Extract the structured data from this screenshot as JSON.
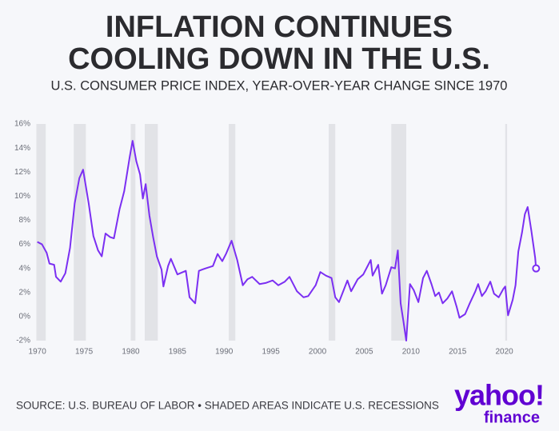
{
  "chart_data": {
    "type": "line",
    "title": [
      "INFLATION CONTINUES",
      "COOLING DOWN IN THE U.S."
    ],
    "subtitle": "U.S. CONSUMER PRICE INDEX, YEAR-OVER-YEAR CHANGE SINCE 1970",
    "source": "SOURCE: U.S. BUREAU OF LABOR • SHADED AREAS INDICATE U.S. RECESSIONS",
    "logo": [
      "yahoo!",
      "finance"
    ],
    "color": "#7b2ff2",
    "recession_color": "#e2e3e7",
    "recessions": [
      [
        1969.9,
        1970.9
      ],
      [
        1973.9,
        1975.2
      ],
      [
        1980.0,
        1980.5
      ],
      [
        1981.5,
        1982.9
      ],
      [
        1990.5,
        1991.2
      ],
      [
        2001.2,
        2001.9
      ],
      [
        2007.9,
        2009.5
      ],
      [
        2020.1,
        2020.3
      ]
    ],
    "x": [
      1970.0,
      1970.5,
      1971.0,
      1971.3,
      1971.8,
      1972.0,
      1972.5,
      1973.0,
      1973.5,
      1974.0,
      1974.5,
      1974.9,
      1975.5,
      1976.0,
      1976.5,
      1976.9,
      1977.3,
      1977.8,
      1978.2,
      1978.8,
      1979.3,
      1979.9,
      1980.2,
      1980.6,
      1981.0,
      1981.3,
      1981.6,
      1982.0,
      1982.4,
      1982.8,
      1983.3,
      1983.5,
      1984.0,
      1984.3,
      1985.0,
      1985.9,
      1986.3,
      1986.9,
      1987.3,
      1988.0,
      1988.8,
      1989.3,
      1989.8,
      1990.2,
      1990.8,
      1991.4,
      1992.0,
      1992.5,
      1993.0,
      1993.8,
      1994.5,
      1995.2,
      1995.8,
      1996.5,
      1997.0,
      1997.8,
      1998.5,
      1999.0,
      1999.8,
      2000.3,
      2000.9,
      2001.5,
      2001.9,
      2002.3,
      2002.9,
      2003.2,
      2003.6,
      2004.3,
      2004.9,
      2005.7,
      2005.9,
      2006.5,
      2006.9,
      2007.3,
      2007.9,
      2008.3,
      2008.6,
      2008.9,
      2009.2,
      2009.5,
      2009.9,
      2010.3,
      2010.8,
      2011.3,
      2011.7,
      2012.2,
      2012.6,
      2013.0,
      2013.4,
      2013.9,
      2014.4,
      2014.9,
      2015.2,
      2015.8,
      2016.3,
      2016.9,
      2017.2,
      2017.6,
      2018.0,
      2018.5,
      2018.9,
      2019.4,
      2019.9,
      2020.1,
      2020.4,
      2020.9,
      2021.2,
      2021.5,
      2021.9,
      2022.2,
      2022.5,
      2022.9,
      2023.1,
      2023.3,
      2023.4
    ],
    "values": [
      6.2,
      6.0,
      5.3,
      4.4,
      4.3,
      3.3,
      2.9,
      3.6,
      5.7,
      9.4,
      11.5,
      12.2,
      9.4,
      6.7,
      5.5,
      5.0,
      6.9,
      6.6,
      6.5,
      8.9,
      10.4,
      13.3,
      14.6,
      12.9,
      11.8,
      9.8,
      11.0,
      8.4,
      6.6,
      5.0,
      3.9,
      2.5,
      4.2,
      4.8,
      3.5,
      3.8,
      1.6,
      1.1,
      3.8,
      4.0,
      4.2,
      5.2,
      4.6,
      5.2,
      6.3,
      4.7,
      2.6,
      3.1,
      3.3,
      2.7,
      2.8,
      3.0,
      2.6,
      2.9,
      3.3,
      2.1,
      1.6,
      1.7,
      2.6,
      3.7,
      3.4,
      3.2,
      1.6,
      1.2,
      2.4,
      3.0,
      2.1,
      3.1,
      3.5,
      4.7,
      3.4,
      4.3,
      1.9,
      2.6,
      4.1,
      4.0,
      5.5,
      1.1,
      -0.4,
      -2.0,
      2.7,
      2.2,
      1.2,
      3.2,
      3.8,
      2.7,
      1.7,
      2.0,
      1.1,
      1.5,
      2.1,
      0.8,
      -0.1,
      0.2,
      1.1,
      2.1,
      2.7,
      1.7,
      2.1,
      2.9,
      1.9,
      1.6,
      2.3,
      2.5,
      0.1,
      1.4,
      2.6,
      5.4,
      7.0,
      8.5,
      9.1,
      7.1,
      6.0,
      4.9,
      4.0
    ],
    "xlim": [
      1969.6,
      2023.8
    ],
    "ylim": [
      -2,
      16
    ],
    "xticks": [
      1970,
      1975,
      1980,
      1985,
      1990,
      1995,
      2000,
      2005,
      2010,
      2015,
      2020
    ],
    "yticks": [
      {
        "value": -2,
        "label": "-2%"
      },
      {
        "value": 0,
        "label": "0%"
      },
      {
        "value": 2,
        "label": "2%"
      },
      {
        "value": 4,
        "label": "4%"
      },
      {
        "value": 6,
        "label": "6%"
      },
      {
        "value": 8,
        "label": "8%"
      },
      {
        "value": 10,
        "label": "10%"
      },
      {
        "value": 12,
        "label": "12%"
      },
      {
        "value": 14,
        "label": "14%"
      },
      {
        "value": 16,
        "label": "16%"
      }
    ],
    "end_marker": true
  }
}
